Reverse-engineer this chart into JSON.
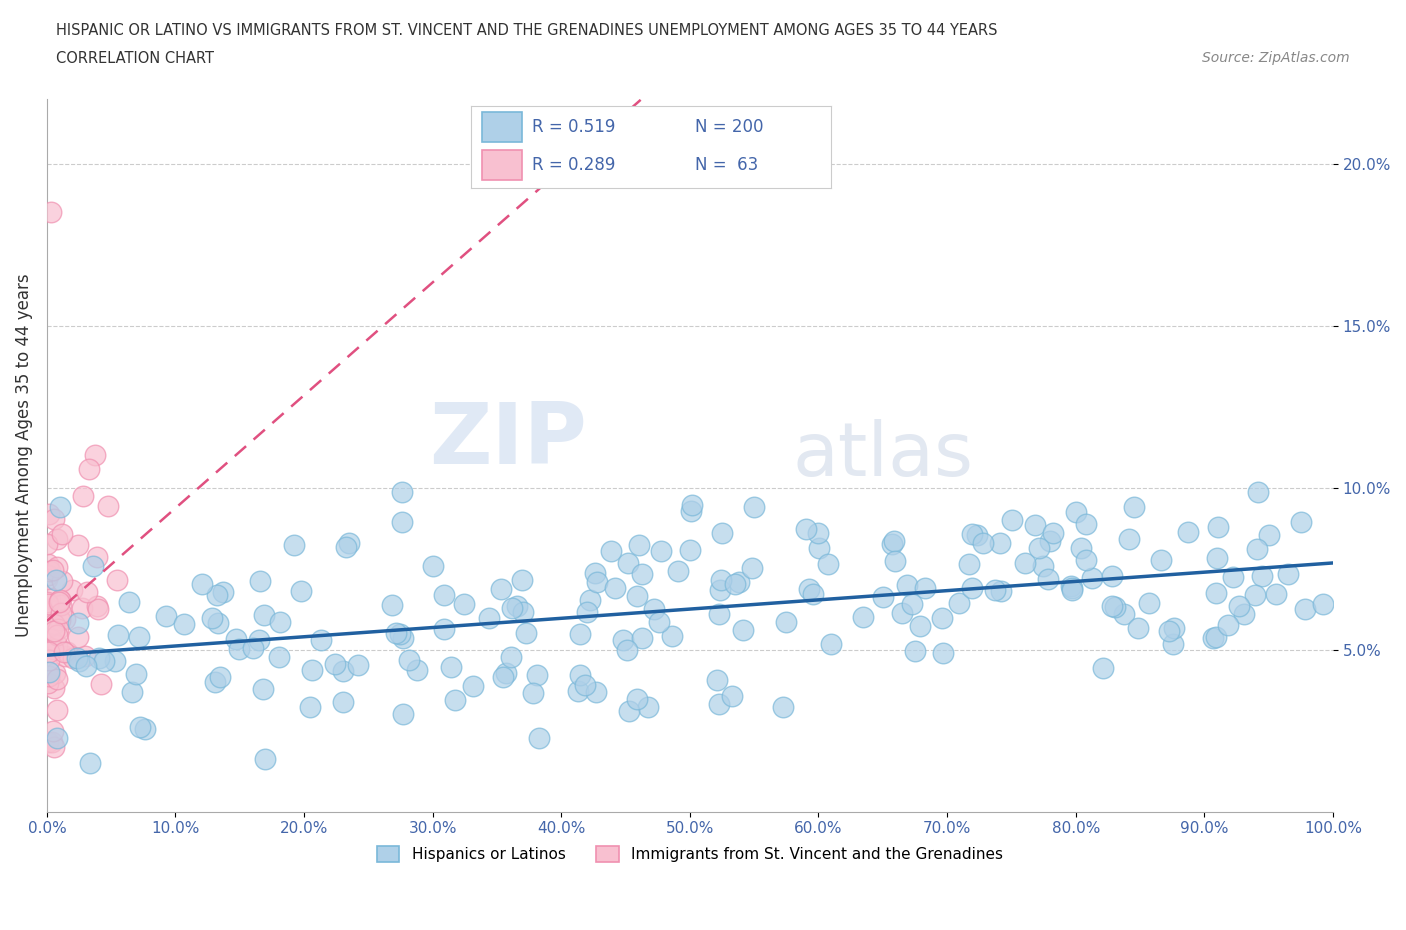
{
  "title_line1": "HISPANIC OR LATINO VS IMMIGRANTS FROM ST. VINCENT AND THE GRENADINES UNEMPLOYMENT AMONG AGES 35 TO 44 YEARS",
  "title_line2": "CORRELATION CHART",
  "source_text": "Source: ZipAtlas.com",
  "ylabel": "Unemployment Among Ages 35 to 44 years",
  "xlim": [
    0.0,
    1.0
  ],
  "ylim": [
    0.0,
    0.22
  ],
  "xtick_labels": [
    "0.0%",
    "10.0%",
    "20.0%",
    "30.0%",
    "40.0%",
    "50.0%",
    "60.0%",
    "70.0%",
    "80.0%",
    "90.0%",
    "100.0%"
  ],
  "xtick_vals": [
    0.0,
    0.1,
    0.2,
    0.3,
    0.4,
    0.5,
    0.6,
    0.7,
    0.8,
    0.9,
    1.0
  ],
  "ytick_labels": [
    "5.0%",
    "10.0%",
    "15.0%",
    "20.0%"
  ],
  "ytick_vals": [
    0.05,
    0.1,
    0.15,
    0.2
  ],
  "blue_edge": "#7ab8d9",
  "blue_fill": "#afd0e8",
  "pink_edge": "#f090b0",
  "pink_fill": "#f8c0d0",
  "trendline_blue": "#2060a0",
  "trendline_pink": "#e05080",
  "R_blue": 0.519,
  "N_blue": 200,
  "R_pink": 0.289,
  "N_pink": 63,
  "legend_label_blue": "Hispanics or Latinos",
  "legend_label_pink": "Immigrants from St. Vincent and the Grenadines",
  "watermark_ZIP": "ZIP",
  "watermark_atlas": "atlas",
  "background_color": "#ffffff",
  "grid_color": "#cccccc",
  "title_color": "#333333",
  "axis_label_color": "#333333",
  "tick_color": "#4466aa"
}
